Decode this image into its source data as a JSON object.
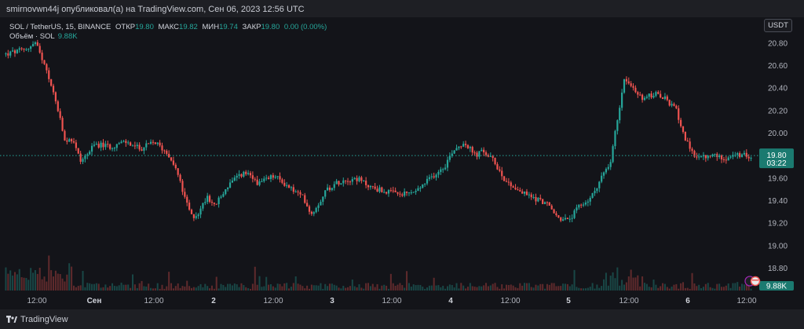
{
  "header": {
    "publisher": "smirnovwn44j опубликовал(а) на TradingView.com, Сен 06, 2023 12:56 UTC"
  },
  "legend": {
    "symbol": "SOL / TetherUS, 15, BINANCE",
    "open_label": "ОТКР",
    "open": "19.80",
    "high_label": "МАКС",
    "high": "19.82",
    "low_label": "МИН",
    "low": "19.74",
    "close_label": "ЗАКР",
    "close": "19.80",
    "change": "0.00 (0.00%)",
    "volume_label": "Объём · SOL",
    "volume": "9.88K"
  },
  "currency_button": "USDT",
  "footer": {
    "brand": "TradingView"
  },
  "colors": {
    "up": "#26a69a",
    "down": "#ef5350",
    "background": "#131419",
    "price_tag": "#1b7a70"
  },
  "chart_data": {
    "type": "candlestick",
    "interval": "15",
    "y_ticks": [
      "20.80",
      "20.60",
      "20.40",
      "20.20",
      "20.00",
      "19.80",
      "19.60",
      "19.40",
      "19.20",
      "19.00",
      "18.80"
    ],
    "ylim": [
      18.72,
      20.98
    ],
    "x_ticks": [
      "12:00",
      "Сен",
      "12:00",
      "2",
      "12:00",
      "3",
      "12:00",
      "4",
      "12:00",
      "5",
      "12:00",
      "6",
      "12:00"
    ],
    "last_price": {
      "value": 19.8,
      "label": "19.80",
      "countdown": "03:22"
    },
    "volume_tag": "9.88K",
    "price_path": [
      [
        0,
        20.7
      ],
      [
        0.012,
        20.72
      ],
      [
        0.025,
        20.74
      ],
      [
        0.04,
        20.8
      ],
      [
        0.05,
        20.62
      ],
      [
        0.06,
        20.45
      ],
      [
        0.07,
        20.2
      ],
      [
        0.08,
        19.9
      ],
      [
        0.09,
        19.95
      ],
      [
        0.1,
        19.75
      ],
      [
        0.11,
        19.82
      ],
      [
        0.12,
        19.9
      ],
      [
        0.14,
        19.88
      ],
      [
        0.16,
        19.92
      ],
      [
        0.18,
        19.86
      ],
      [
        0.2,
        19.92
      ],
      [
        0.22,
        19.8
      ],
      [
        0.23,
        19.65
      ],
      [
        0.24,
        19.42
      ],
      [
        0.25,
        19.25
      ],
      [
        0.26,
        19.3
      ],
      [
        0.27,
        19.45
      ],
      [
        0.28,
        19.35
      ],
      [
        0.3,
        19.55
      ],
      [
        0.32,
        19.65
      ],
      [
        0.33,
        19.6
      ],
      [
        0.34,
        19.55
      ],
      [
        0.36,
        19.62
      ],
      [
        0.38,
        19.52
      ],
      [
        0.4,
        19.42
      ],
      [
        0.41,
        19.28
      ],
      [
        0.42,
        19.38
      ],
      [
        0.43,
        19.5
      ],
      [
        0.45,
        19.58
      ],
      [
        0.47,
        19.6
      ],
      [
        0.49,
        19.52
      ],
      [
        0.51,
        19.48
      ],
      [
        0.53,
        19.45
      ],
      [
        0.55,
        19.48
      ],
      [
        0.57,
        19.6
      ],
      [
        0.59,
        19.72
      ],
      [
        0.6,
        19.85
      ],
      [
        0.615,
        19.92
      ],
      [
        0.63,
        19.8
      ],
      [
        0.64,
        19.84
      ],
      [
        0.655,
        19.75
      ],
      [
        0.67,
        19.58
      ],
      [
        0.69,
        19.48
      ],
      [
        0.71,
        19.42
      ],
      [
        0.725,
        19.38
      ],
      [
        0.74,
        19.25
      ],
      [
        0.755,
        19.22
      ],
      [
        0.77,
        19.35
      ],
      [
        0.785,
        19.42
      ],
      [
        0.8,
        19.62
      ],
      [
        0.81,
        19.7
      ],
      [
        0.82,
        20.1
      ],
      [
        0.83,
        20.5
      ],
      [
        0.84,
        20.4
      ],
      [
        0.855,
        20.3
      ],
      [
        0.87,
        20.35
      ],
      [
        0.885,
        20.3
      ],
      [
        0.9,
        20.2
      ],
      [
        0.91,
        19.98
      ],
      [
        0.92,
        19.82
      ],
      [
        0.935,
        19.78
      ],
      [
        0.95,
        19.8
      ],
      [
        0.965,
        19.78
      ],
      [
        0.98,
        19.8
      ]
    ]
  }
}
